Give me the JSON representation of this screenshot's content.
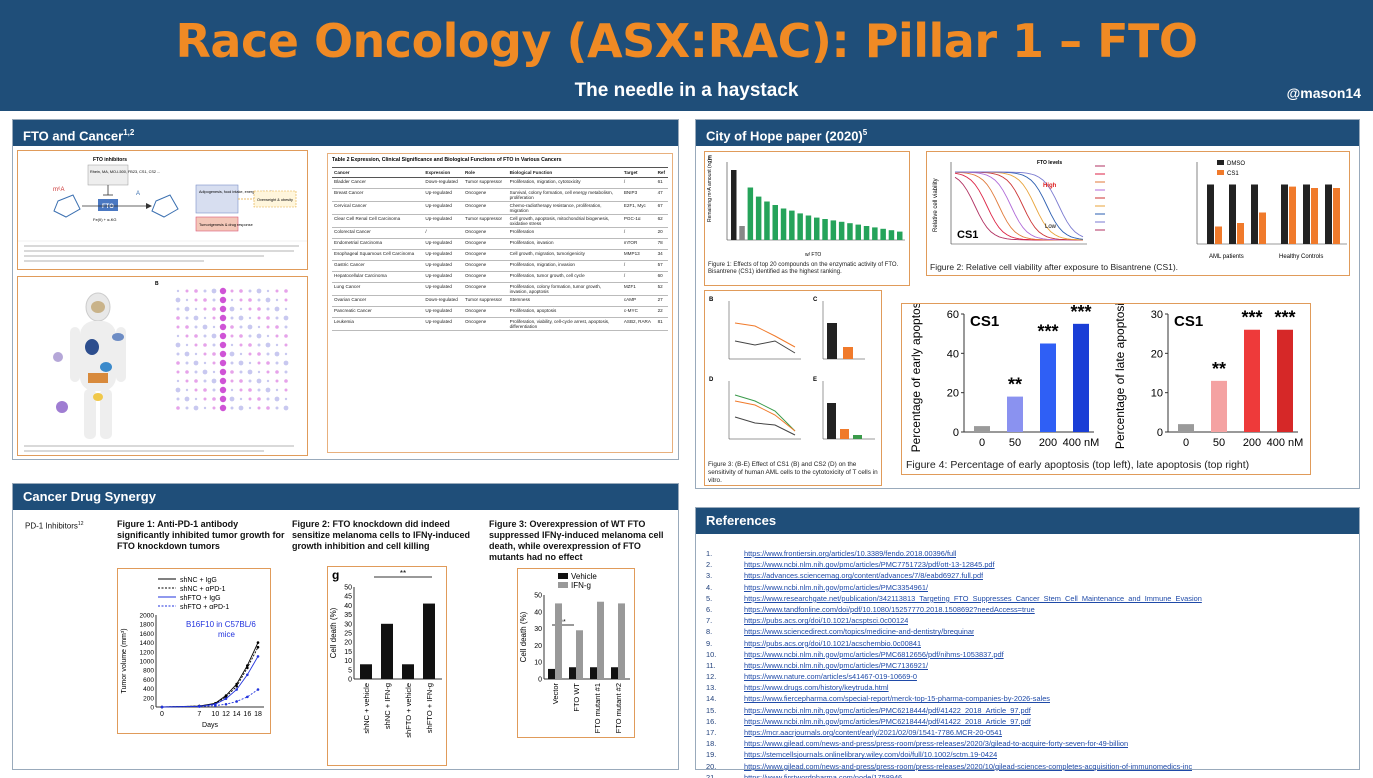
{
  "header": {
    "title": "Race Oncology (ASX:RAC): Pillar 1 – FTO",
    "subtitle": "The needle in a haystack",
    "handle": "@mason14"
  },
  "fto_cancer": {
    "heading": "FTO and Cancer",
    "heading_sup": "1,2",
    "diagram": {
      "inhibitors_title": "FTO inhibitors",
      "inhibitors_list": "Rhein, MA, MO-I-500, FB23, CS1, CS2 ...",
      "fto_label": "FTO",
      "m6a_label": "m⁶A",
      "a_label": "A",
      "cofactor": "Fe(II) + α-KG",
      "box1": "Adipogenesis, food intake, energy metabolism",
      "box2": "Tumorigenesis & drug response",
      "box3": "Overweight & obesity"
    },
    "table": {
      "title": "Table 2 Expression, Clinical Significance and Biological Functions of FTO in Various Cancers",
      "columns": [
        "Cancer",
        "Expression",
        "Role",
        "Biological Function",
        "Target",
        "Ref"
      ],
      "rows": [
        [
          "Bladder Cancer",
          "Down-regulated",
          "Tumor suppressor",
          "Proliferation, migration, cytotoxicity",
          "/",
          "61"
        ],
        [
          "Breast Cancer",
          "Up-regulated",
          "Oncogene",
          "Survival, colony formation, cell energy metabolism, proliferation",
          "BNIP3",
          "47"
        ],
        [
          "Cervical Cancer",
          "Up-regulated",
          "Oncogene",
          "Chemo-radiotherapy resistance, proliferation, migration",
          "E2F1, Myc",
          "67"
        ],
        [
          "Clear Cell Renal Cell Carcinoma",
          "Up-regulated",
          "Tumor suppressor",
          "Cell growth, apoptosis, mitochondrial biogenesis, oxidative stress",
          "PGC-1α",
          "62"
        ],
        [
          "Colorectal Cancer",
          "/",
          "Oncogene",
          "Proliferation",
          "/",
          "20"
        ],
        [
          "Endometrial Carcinoma",
          "Up-regulated",
          "Oncogene",
          "Proliferation, invasion",
          "mTOR",
          "78"
        ],
        [
          "Esophageal Squamous Cell Carcinoma",
          "Up-regulated",
          "Oncogene",
          "Cell growth, migration, tumorigenicity",
          "MMP13",
          "34"
        ],
        [
          "Gastric Cancer",
          "Up-regulated",
          "Oncogene",
          "Proliferation, migration, invasion",
          "/",
          "57"
        ],
        [
          "Hepatocellular Carcinoma",
          "Up-regulated",
          "Oncogene",
          "Proliferation, tumor growth, cell cycle",
          "/",
          "60"
        ],
        [
          "Lung Cancer",
          "Up-regulated",
          "Oncogene",
          "Proliferation, colony formation, tumor growth, invasion, apoptosis",
          "MZF1",
          "52"
        ],
        [
          "Ovarian Cancer",
          "Down-regulated",
          "Tumor suppressor",
          "Stemness",
          "cAMP",
          "27"
        ],
        [
          "Pancreatic Cancer",
          "Up-regulated",
          "Oncogene",
          "Proliferation, apoptosis",
          "c-MYC",
          "22"
        ],
        [
          "Leukemia",
          "Up-regulated",
          "Oncogene",
          "Proliferation, viability, cell-cycle arrest, apoptosis, differentiation",
          "ASB2, RARA",
          "81"
        ]
      ]
    }
  },
  "city_of_hope": {
    "heading": "City of Hope paper (2020)",
    "heading_sup": "5",
    "fig1_caption": "Figure 1: Effects of top 20 compounds on the enzymatic activity of FTO. Bisantrene (CS1) identified as the highest ranking.",
    "fig1_ylabel": "Remaining m⁶A amount (ng)",
    "fig1_xlabel": "w/ FTO",
    "fig2_caption": "Figure 2: Relative cell viability after exposure to Bisantrene (CS1).",
    "fig2_ylabel": "Relative cell viability",
    "fig2_drug": "CS1",
    "fig2_legend_title": "FTO levels",
    "fig2_high": "High",
    "fig2_low": "Low",
    "fig2_bar_legend": [
      "DMSO",
      "CS1"
    ],
    "fig2_groups": [
      "AML patients",
      "Healthy Controls"
    ],
    "fig3_caption": "Figure 3: (B-E) Effect of CS1 (B) and CS2 (D) on the sensitivity of human AML cells to the cytotoxicity of T cells in vitro.",
    "fig4_caption": "Figure 4: Percentage of early apoptosis (top left), late apoptosis (top right)",
    "fig4_drug": "CS1"
  },
  "synergy": {
    "heading": "Cancer Drug Synergy",
    "pd1_label": "PD-1 Inhibitors",
    "pd1_sup": "12",
    "fig1_title": "Figure 1: Anti-PD-1 antibody significantly inhibited tumor growth for FTO knockdown tumors",
    "fig1_legend": [
      "shNC + IgG",
      "shNC + αPD-1",
      "shFTO + IgG",
      "shFTO + αPD-1"
    ],
    "fig1_note": "B16F10 in C57BL/6 mice",
    "fig1_ylabel": "Tumor volume (mm³)",
    "fig1_xlabel": "Days",
    "fig2_title": "Figure 2: FTO knockdown did indeed sensitize melanoma cells to IFNγ-induced growth inhibition and cell killing",
    "fig2_panel": "g",
    "fig2_ylabel": "Cell death (%)",
    "fig3_title": "Figure 3:  Overexpression of WT FTO suppressed IFNγ-induced melanoma cell death, while overexpression of FTO mutants had no effect",
    "fig3_legend": [
      "Vehicle",
      "IFN-g"
    ],
    "fig3_ylabel": "Cell death (%)"
  },
  "chart_data": [
    {
      "type": "bar",
      "title": "",
      "ylabel": "Percentage of early apoptosis",
      "categories": [
        "0",
        "50",
        "200",
        "400 nM"
      ],
      "values": [
        3,
        18,
        45,
        55
      ],
      "labels": [
        "",
        "**",
        "***",
        "***"
      ],
      "ylim": [
        0,
        60
      ],
      "yticks": [
        0,
        20,
        40,
        60
      ]
    },
    {
      "type": "bar",
      "title": "",
      "ylabel": "Percentage of late apoptosis",
      "categories": [
        "0",
        "50",
        "200",
        "400 nM"
      ],
      "values": [
        2,
        13,
        26,
        26
      ],
      "labels": [
        "",
        "**",
        "***",
        "***"
      ],
      "ylim": [
        0,
        30
      ],
      "yticks": [
        0,
        10,
        20,
        30
      ]
    },
    {
      "type": "line",
      "title": "",
      "ylabel": "Tumor volume (mm³)",
      "xlabel": "Days",
      "x": [
        0,
        7,
        10,
        12,
        14,
        16,
        18
      ],
      "ylim": [
        0,
        2000
      ],
      "yticks": [
        0,
        200,
        400,
        600,
        800,
        1000,
        1200,
        1400,
        1600,
        1800,
        2000
      ],
      "series": [
        {
          "name": "shNC + IgG",
          "values": [
            0,
            20,
            80,
            250,
            500,
            900,
            1400
          ]
        },
        {
          "name": "shNC + αPD-1",
          "values": [
            0,
            20,
            70,
            220,
            450,
            850,
            1300
          ]
        },
        {
          "name": "shFTO + IgG",
          "values": [
            0,
            15,
            60,
            180,
            380,
            700,
            1100
          ]
        },
        {
          "name": "shFTO + αPD-1",
          "values": [
            0,
            10,
            30,
            60,
            120,
            220,
            380
          ]
        }
      ]
    },
    {
      "type": "bar",
      "title": "",
      "ylabel": "Cell death (%)",
      "categories": [
        "shNC + vehicle",
        "shNC + IFN-g",
        "shFTO + vehicle",
        "shFTO + IFN-g"
      ],
      "values": [
        8,
        30,
        8,
        41
      ],
      "ylim": [
        0,
        50
      ],
      "yticks": [
        0,
        5,
        10,
        15,
        20,
        25,
        30,
        35,
        40,
        45,
        50
      ]
    },
    {
      "type": "bar",
      "title": "",
      "ylabel": "Cell death (%)",
      "categories": [
        "Vector",
        "FTO WT",
        "FTO mutant #1",
        "FTO mutant #2"
      ],
      "series": [
        {
          "name": "Vehicle",
          "values": [
            6,
            7,
            7,
            7
          ]
        },
        {
          "name": "IFN-g",
          "values": [
            45,
            29,
            46,
            45
          ]
        }
      ],
      "ylim": [
        0,
        50
      ],
      "yticks": [
        0,
        10,
        20,
        30,
        40,
        50
      ]
    }
  ],
  "references": {
    "heading": "References",
    "items": [
      {
        "num": "1.",
        "url": "https://www.frontiersin.org/articles/10.3389/fendo.2018.00396/full"
      },
      {
        "num": "2.",
        "url": "https://www.ncbi.nlm.nih.gov/pmc/articles/PMC7751723/pdf/ott-13-12845.pdf"
      },
      {
        "num": "3.",
        "url": "https://advances.sciencemag.org/content/advances/7/8/eabd6927.full.pdf"
      },
      {
        "num": "4.",
        "url": "https://www.ncbi.nlm.nih.gov/pmc/articles/PMC3354961/"
      },
      {
        "num": "5.",
        "url": "https://www.researchgate.net/publication/342113813_Targeting_FTO_Suppresses_Cancer_Stem_Cell_Maintenance_and_Immune_Evasion"
      },
      {
        "num": "6.",
        "url": "https://www.tandfonline.com/doi/pdf/10.1080/15257770.2018.1508692?needAccess=true"
      },
      {
        "num": "7.",
        "url": "https://pubs.acs.org/doi/10.1021/acsptsci.0c00124"
      },
      {
        "num": "8.",
        "url": "https://www.sciencedirect.com/topics/medicine-and-dentistry/brequinar"
      },
      {
        "num": "9.",
        "url": "https://pubs.acs.org/doi/10.1021/acschembio.0c00841"
      },
      {
        "num": "10.",
        "url": "https://www.ncbi.nlm.nih.gov/pmc/articles/PMC6812656/pdf/nihms-1053837.pdf"
      },
      {
        "num": "11.",
        "url": "https://www.ncbi.nlm.nih.gov/pmc/articles/PMC7136921/"
      },
      {
        "num": "12.",
        "url": "https://www.nature.com/articles/s41467-019-10669-0"
      },
      {
        "num": "13.",
        "url": "https://www.drugs.com/history/keytruda.html"
      },
      {
        "num": "14.",
        "url": "https://www.fiercepharma.com/special-report/merck-top-15-pharma-companies-by-2026-sales"
      },
      {
        "num": "15.",
        "url": "https://www.ncbi.nlm.nih.gov/pmc/articles/PMC6218444/pdf/41422_2018_Article_97.pdf"
      },
      {
        "num": "16.",
        "url": "https://www.ncbi.nlm.nih.gov/pmc/articles/PMC6218444/pdf/41422_2018_Article_97.pdf"
      },
      {
        "num": "17.",
        "url": "https://mcr.aacrjournals.org/content/early/2021/02/09/1541-7786.MCR-20-0541"
      },
      {
        "num": "18.",
        "url": "https://www.gilead.com/news-and-press/press-room/press-releases/2020/3/gilead-to-acquire-forty-seven-for-49-billion"
      },
      {
        "num": "19.",
        "url": "https://stemcellsjournals.onlinelibrary.wiley.com/doi/full/10.1002/sctm.19-0424"
      },
      {
        "num": "20.",
        "url": "https://www.gilead.com/news-and-press/press-room/press-releases/2020/10/gilead-sciences-completes-acquisition-of-immunomedics-inc"
      },
      {
        "num": "21.",
        "url": "https://www.firstwordpharma.com/node/1758946"
      }
    ]
  }
}
